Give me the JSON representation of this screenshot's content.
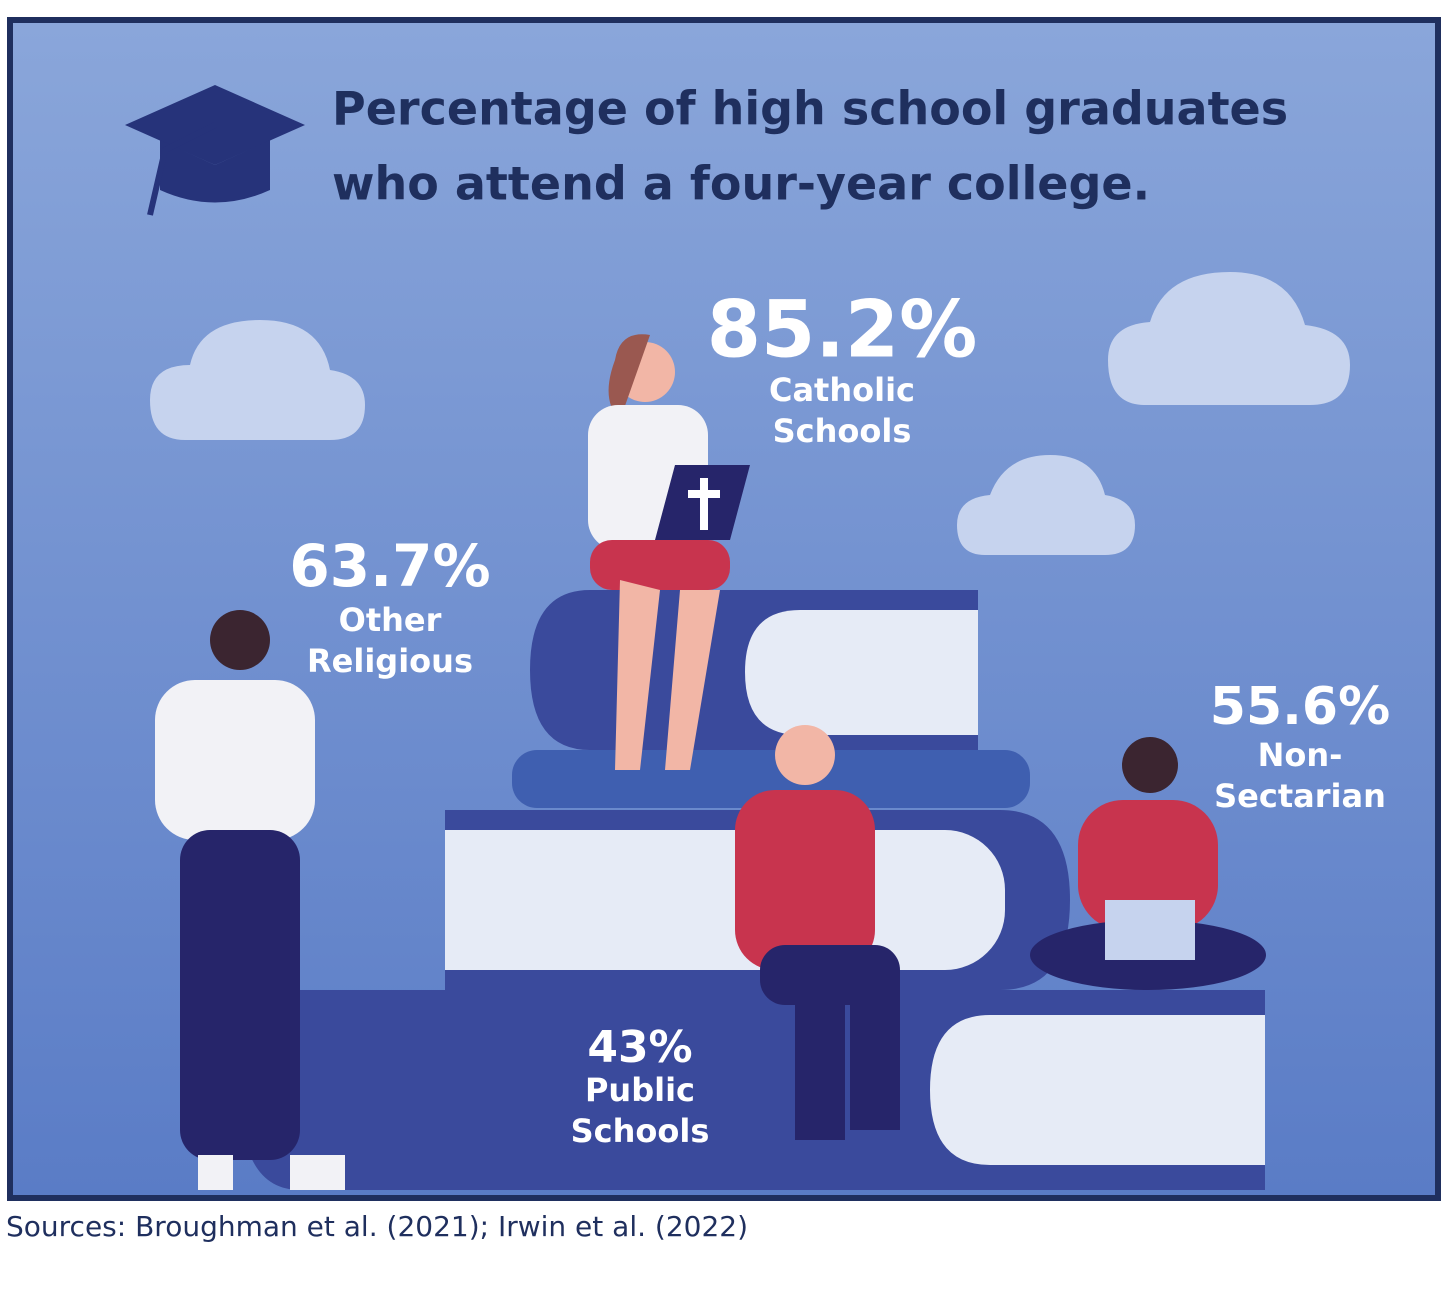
{
  "title": [
    "Percentage of high school graduates",
    "who attend a four-year college."
  ],
  "stats": [
    {
      "value": "85.2%",
      "label": [
        "Catholic",
        "Schools"
      ]
    },
    {
      "value": "63.7%",
      "label": [
        "Other",
        "Religious"
      ]
    },
    {
      "value": "55.6%",
      "label": [
        "Non-",
        "Sectarian"
      ]
    },
    {
      "value": "43%",
      "label": [
        "Public",
        "Schools"
      ]
    }
  ],
  "source": "Sources: Broughman et al. (2021); Irwin et al. (2022)"
}
